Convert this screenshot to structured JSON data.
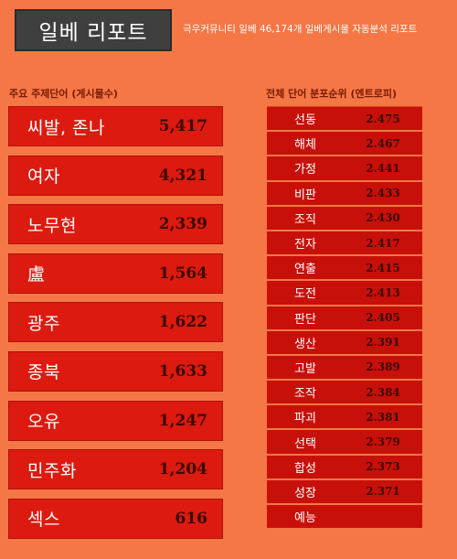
{
  "header": {
    "title": "일베 리포트",
    "subtitle": "극우커뮤니티 일베 46,174개 일베게시물 자동분석 리포트"
  },
  "left_panel": {
    "heading": "주요 주제단어 (게시물수)",
    "items": [
      {
        "word": "씨발, 존나",
        "count": "5,417"
      },
      {
        "word": "여자",
        "count": "4,321"
      },
      {
        "word": "노무현",
        "count": "2,339"
      },
      {
        "word": "盧",
        "count": "1,564"
      },
      {
        "word": "광주",
        "count": "1,622"
      },
      {
        "word": "종북",
        "count": "1,633"
      },
      {
        "word": "오유",
        "count": "1,247"
      },
      {
        "word": "민주화",
        "count": "1,204"
      },
      {
        "word": "섹스",
        "count": "616"
      }
    ]
  },
  "right_panel": {
    "heading": "전체 단어 분포순위 (엔트로피)",
    "items": [
      {
        "word": "선동",
        "value": "2.475"
      },
      {
        "word": "해체",
        "value": "2.467"
      },
      {
        "word": "가정",
        "value": "2.441"
      },
      {
        "word": "비판",
        "value": "2.433"
      },
      {
        "word": "조직",
        "value": "2.430"
      },
      {
        "word": "전자",
        "value": "2.417"
      },
      {
        "word": "연출",
        "value": "2.415"
      },
      {
        "word": "도전",
        "value": "2.413"
      },
      {
        "word": "판단",
        "value": "2.405"
      },
      {
        "word": "생산",
        "value": "2.391"
      },
      {
        "word": "고발",
        "value": "2.389"
      },
      {
        "word": "조작",
        "value": "2.384"
      },
      {
        "word": "파괴",
        "value": "2.381"
      },
      {
        "word": "선택",
        "value": "2.379"
      },
      {
        "word": "합성",
        "value": "2.373"
      },
      {
        "word": "성장",
        "value": "2.371"
      },
      {
        "word": "예능",
        "value": ""
      }
    ]
  }
}
